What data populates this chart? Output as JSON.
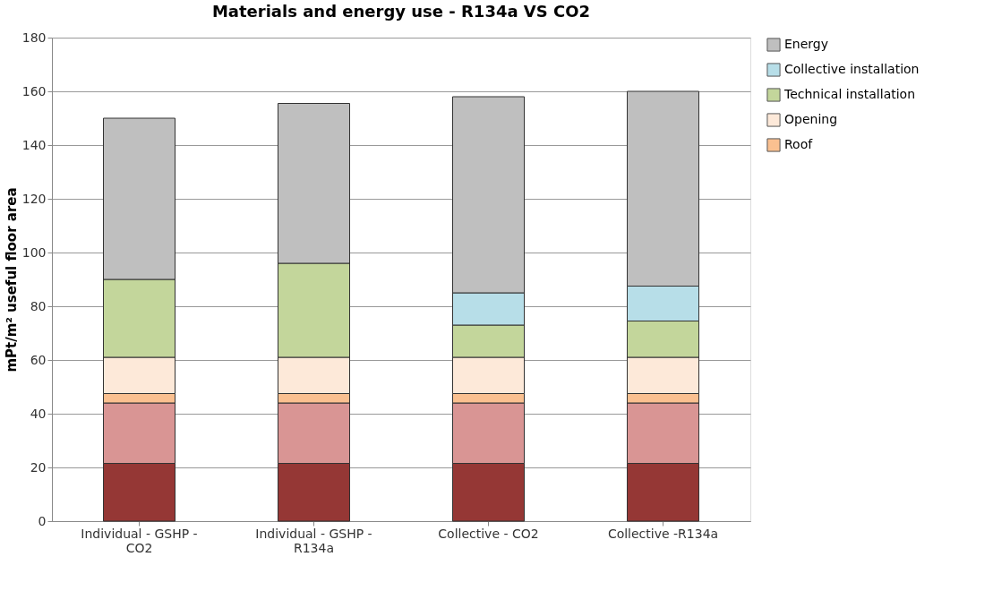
{
  "chart_data": {
    "type": "bar",
    "stacked": true,
    "title": "Materials and energy use - R134a VS CO2",
    "ylabel": "mPt/m² useful floor area",
    "categories": [
      "Individual - GSHP - CO2",
      "Individual - GSHP - R134a",
      "Collective - CO2",
      "Collective -R134a"
    ],
    "series": [
      {
        "color": "#953735",
        "values": [
          21.5,
          21.5,
          21.5,
          21.5
        ]
      },
      {
        "color": "#d99594",
        "values": [
          22.5,
          22.5,
          22.5,
          22.5
        ]
      },
      {
        "name": "Roof",
        "color": "#fac090",
        "values": [
          3.5,
          3.5,
          3.5,
          3.5
        ]
      },
      {
        "name": "Opening",
        "color": "#fde9d9",
        "values": [
          13.5,
          13.5,
          13.5,
          13.5
        ]
      },
      {
        "name": "Technical installation",
        "color": "#c3d69b",
        "values": [
          29,
          35,
          12,
          13.5
        ]
      },
      {
        "name": "Collective installation",
        "color": "#b7dee8",
        "values": [
          null,
          null,
          12,
          13
        ]
      },
      {
        "name": "Energy",
        "color": "#bfbfbf",
        "values": [
          60,
          59.5,
          73,
          72.5
        ]
      }
    ],
    "ylim": [
      0,
      180
    ],
    "yticks": [
      0,
      20,
      40,
      60,
      80,
      100,
      120,
      140,
      160,
      180
    ],
    "grid": "y",
    "legend": "right"
  }
}
